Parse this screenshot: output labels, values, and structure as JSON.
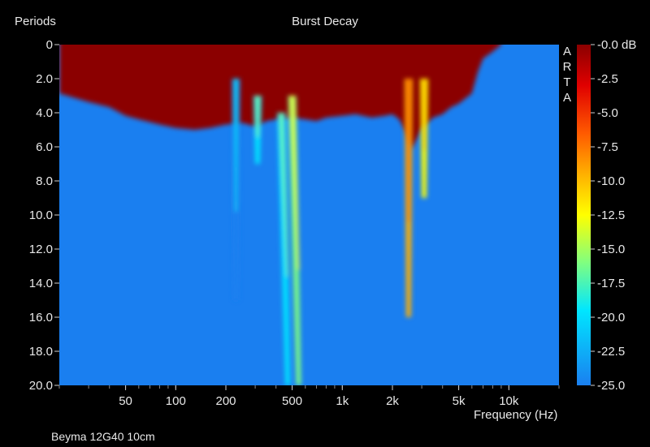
{
  "chart_data": {
    "type": "heatmap",
    "title": "Burst Decay",
    "ylabel": "Periods",
    "xlabel": "Frequency (Hz)",
    "caption": "Beyma 12G40 10cm",
    "watermark": "ARTA",
    "x_scale": "log",
    "xlim": [
      20,
      20000
    ],
    "ylim": [
      0,
      20
    ],
    "x_ticks": [
      {
        "value": 50,
        "label": "50"
      },
      {
        "value": 100,
        "label": "100"
      },
      {
        "value": 200,
        "label": "200"
      },
      {
        "value": 500,
        "label": "500"
      },
      {
        "value": 1000,
        "label": "1k"
      },
      {
        "value": 2000,
        "label": "2k"
      },
      {
        "value": 5000,
        "label": "5k"
      },
      {
        "value": 10000,
        "label": "10k"
      }
    ],
    "y_ticks": [
      {
        "value": 0,
        "label": "0"
      },
      {
        "value": 2,
        "label": "2.0"
      },
      {
        "value": 4,
        "label": "4.0"
      },
      {
        "value": 6,
        "label": "6.0"
      },
      {
        "value": 8,
        "label": "8.0"
      },
      {
        "value": 10,
        "label": "10.0"
      },
      {
        "value": 12,
        "label": "12.0"
      },
      {
        "value": 14,
        "label": "14.0"
      },
      {
        "value": 16,
        "label": "16.0"
      },
      {
        "value": 18,
        "label": "18.0"
      },
      {
        "value": 20,
        "label": "20.0"
      }
    ],
    "colorbar": {
      "unit": "dB",
      "range": [
        -25,
        0
      ],
      "ticks": [
        {
          "value": 0,
          "label": "-0.0 dB"
        },
        {
          "value": -2.5,
          "label": "-2.5"
        },
        {
          "value": -5,
          "label": "-5.0"
        },
        {
          "value": -7.5,
          "label": "-7.5"
        },
        {
          "value": -10,
          "label": "-10.0"
        },
        {
          "value": -12.5,
          "label": "-12.5"
        },
        {
          "value": -15,
          "label": "-15.0"
        },
        {
          "value": -17.5,
          "label": "-17.5"
        },
        {
          "value": -20,
          "label": "-20.0"
        },
        {
          "value": -22.5,
          "label": "-22.5"
        },
        {
          "value": -25,
          "label": "-25.0"
        }
      ]
    },
    "background_level_db": -25,
    "colors": {
      "floor": "#1a7ff0",
      "stops": [
        "#8b0000",
        "#e00000",
        "#ff5a00",
        "#ffb000",
        "#ffff00",
        "#80ff80",
        "#00e6ff",
        "#1a7ff0"
      ]
    },
    "decay_profile": {
      "frequency_hz": [
        30,
        40,
        50,
        60,
        80,
        100,
        130,
        160,
        200,
        250,
        300,
        350,
        400,
        500,
        600,
        700,
        800,
        1000,
        1200,
        1500,
        1800,
        2000,
        2200,
        2400,
        2600,
        2800,
        3000,
        3500,
        4000,
        4500,
        5000,
        6000,
        6500,
        7000,
        8000
      ],
      "periods_to_floor": [
        3.3,
        3.6,
        4.1,
        4.3,
        4.6,
        4.8,
        4.9,
        4.8,
        4.6,
        4.5,
        4.7,
        4.4,
        4.3,
        4.2,
        4.3,
        4.4,
        4.2,
        4.1,
        4.0,
        4.2,
        4.1,
        4.0,
        4.3,
        5.0,
        6.0,
        5.4,
        4.8,
        4.2,
        4.0,
        3.6,
        3.4,
        2.8,
        1.6,
        0.8,
        0.4
      ]
    },
    "resonance_ridges": [
      {
        "frequency_hz": 230,
        "periods": [
          2,
          15
        ],
        "peak_db": -20
      },
      {
        "frequency_hz": 310,
        "periods": [
          3,
          7
        ],
        "peak_db": -19
      },
      {
        "frequency_hz": 430,
        "periods": [
          4,
          20
        ],
        "peak_db": -17
      },
      {
        "frequency_hz": 500,
        "periods": [
          3,
          20
        ],
        "peak_db": -15
      },
      {
        "frequency_hz": 2500,
        "periods": [
          2,
          16
        ],
        "peak_db": -8
      },
      {
        "frequency_hz": 3100,
        "periods": [
          2,
          9
        ],
        "peak_db": -11
      }
    ]
  }
}
